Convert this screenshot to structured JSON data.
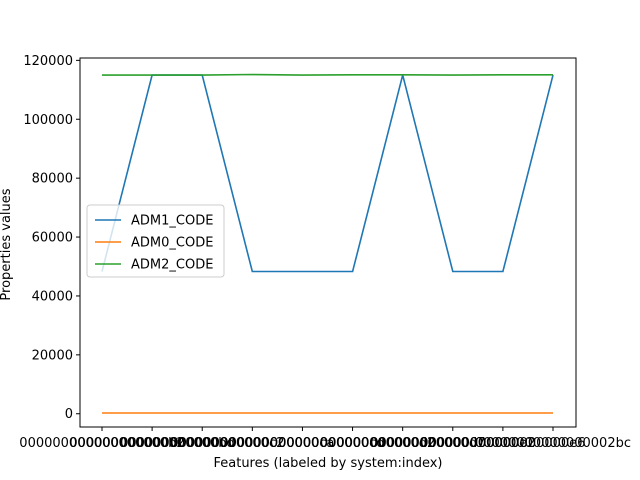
{
  "chart_data": {
    "type": "line",
    "title": "",
    "xlabel": "Features (labeled by system:index)",
    "ylabel": "Properties values",
    "categories": [
      "000000000000000000b2",
      "000000000000000000bd",
      "000000000000000000c2",
      "000000000000000000ca",
      "000000000000000000cd",
      "000000000000000000d2",
      "000000000000000000d7",
      "000000000000000000e2",
      "000000000000000000e6",
      "00000000000000002bc"
    ],
    "ylim": [
      -4500,
      120800
    ],
    "yticks": [
      0,
      20000,
      40000,
      60000,
      80000,
      100000,
      120000
    ],
    "ytick_labels": [
      "0",
      "20000",
      "40000",
      "60000",
      "80000",
      "100000",
      "120000"
    ],
    "series": [
      {
        "name": "ADM1_CODE",
        "color": "#1f77b4",
        "values": [
          48300,
          115000,
          115000,
          48300,
          48300,
          48300,
          115000,
          48300,
          48300,
          115000
        ]
      },
      {
        "name": "ADM0_CODE",
        "color": "#ff7f0e",
        "values": [
          250,
          250,
          250,
          250,
          250,
          250,
          250,
          250,
          250,
          250
        ]
      },
      {
        "name": "ADM2_CODE",
        "color": "#2ca02c",
        "values": [
          115000,
          115000,
          115000,
          115200,
          115000,
          115100,
          115100,
          115000,
          115100,
          115100
        ]
      }
    ],
    "legend_position": "center-left",
    "grid": false
  }
}
